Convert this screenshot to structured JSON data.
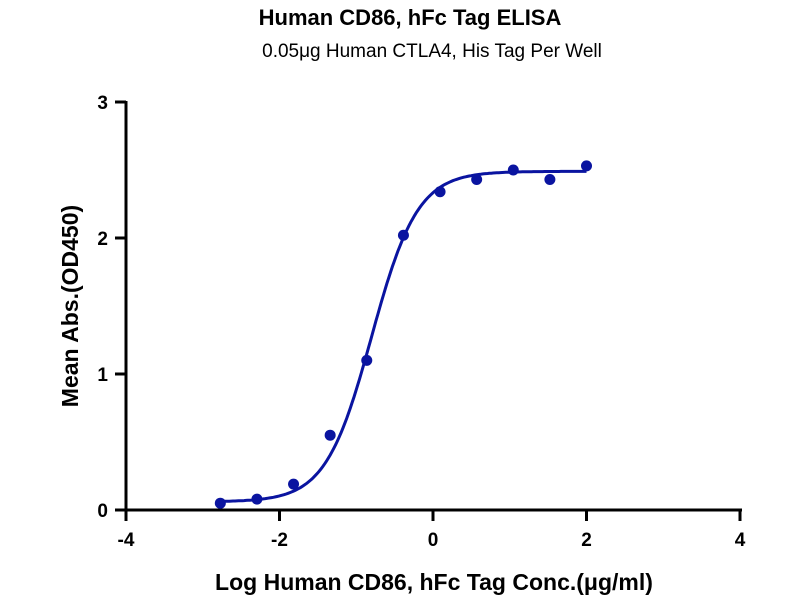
{
  "chart_data": {
    "type": "scatter",
    "title": "Human CD86, hFc Tag ELISA",
    "subtitle": "0.05μg  Human CTLA4, His Tag Per Well",
    "xlabel": "Log Human CD86,  hFc Tag Conc.(μg/ml)",
    "ylabel": "Mean Abs.(OD450)",
    "xlim": [
      -4,
      4
    ],
    "ylim": [
      0,
      3
    ],
    "xticks": [
      -4,
      -2,
      0,
      2,
      4
    ],
    "yticks": [
      0,
      1,
      2,
      3
    ],
    "grid": false,
    "series": [
      {
        "name": "Human CD86, hFc Tag",
        "color": "#0a14a0",
        "x": [
          -2.771,
          -2.294,
          -1.817,
          -1.34,
          -0.863,
          -0.385,
          0.092,
          0.569,
          1.046,
          1.523,
          2.0
        ],
        "y": [
          0.05,
          0.08,
          0.19,
          0.55,
          1.1,
          2.02,
          2.34,
          2.43,
          2.5,
          2.43,
          2.53
        ]
      }
    ],
    "fit": {
      "model": "4PL",
      "bottom": 0.06,
      "top": 2.49,
      "logEC50": -0.8,
      "hill": 1.45
    }
  }
}
